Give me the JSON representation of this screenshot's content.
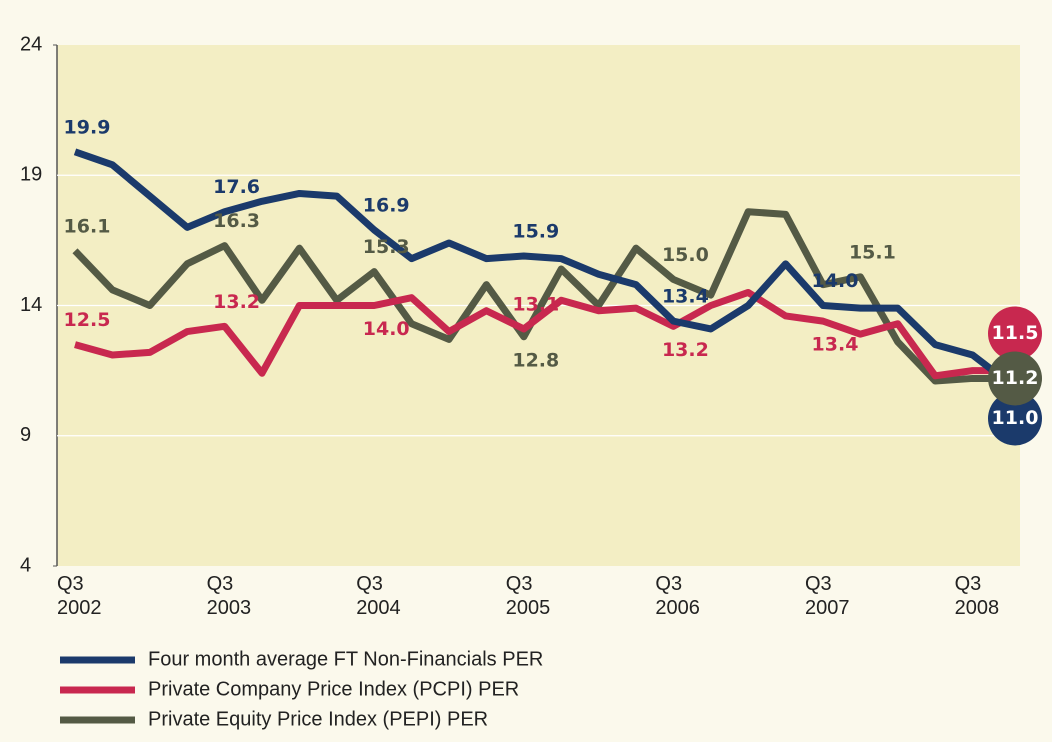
{
  "chart_data": {
    "type": "line",
    "categories": [
      "Q3 2002",
      null,
      null,
      null,
      "Q3 2003",
      null,
      null,
      null,
      "Q3 2004",
      null,
      null,
      null,
      "Q3 2005",
      null,
      null,
      null,
      "Q3 2006",
      null,
      null,
      null,
      "Q3 2007",
      null,
      null,
      null,
      "Q3 2008",
      null
    ],
    "ylim": [
      4,
      24
    ],
    "yticks": [
      4,
      9,
      14,
      19,
      24
    ],
    "grid": true,
    "series": [
      {
        "name": "Four month average FT Non-Financials PER",
        "color": "#1b3a6b",
        "values": [
          19.9,
          19.4,
          18.2,
          17.0,
          17.6,
          18.0,
          18.3,
          18.2,
          16.9,
          15.8,
          16.4,
          15.8,
          15.9,
          15.8,
          15.2,
          14.8,
          13.4,
          13.1,
          14.0,
          15.6,
          14.0,
          13.9,
          13.9,
          12.5,
          12.1,
          11.0
        ],
        "value_labels": [
          "19.9",
          null,
          null,
          null,
          "17.6",
          null,
          null,
          null,
          "16.9",
          null,
          null,
          null,
          "15.9",
          null,
          null,
          null,
          "13.4",
          null,
          null,
          null,
          "14.0",
          null,
          null,
          null,
          null,
          "11.0"
        ]
      },
      {
        "name": "Private Company Price Index (PCPI) PER",
        "color": "#c8284f",
        "values": [
          12.5,
          12.1,
          12.2,
          13.0,
          13.2,
          11.4,
          14.0,
          14.0,
          14.0,
          14.3,
          13.0,
          13.8,
          13.1,
          14.2,
          13.8,
          13.9,
          13.2,
          14.0,
          14.5,
          13.6,
          13.4,
          12.9,
          13.3,
          11.3,
          11.5,
          11.5
        ],
        "value_labels": [
          "12.5",
          null,
          null,
          null,
          "13.2",
          null,
          null,
          null,
          "14.0",
          null,
          null,
          null,
          "13.1",
          null,
          null,
          null,
          "13.2",
          null,
          null,
          null,
          "13.4",
          null,
          null,
          null,
          null,
          "11.5"
        ]
      },
      {
        "name": "Private Equity Price Index (PEPI) PER",
        "color": "#545a45",
        "values": [
          16.1,
          14.6,
          14.0,
          15.6,
          16.3,
          14.2,
          16.2,
          14.2,
          15.3,
          13.3,
          12.7,
          14.8,
          12.8,
          15.4,
          14.0,
          16.2,
          15.0,
          14.4,
          17.6,
          17.5,
          14.8,
          15.1,
          12.6,
          11.1,
          11.2,
          11.2
        ],
        "value_labels": [
          "16.1",
          null,
          null,
          null,
          "16.3",
          null,
          null,
          null,
          "15.3",
          null,
          null,
          null,
          "12.8",
          null,
          null,
          null,
          "15.0",
          null,
          null,
          null,
          null,
          "15.1",
          null,
          null,
          null,
          "11.2"
        ]
      }
    ]
  }
}
